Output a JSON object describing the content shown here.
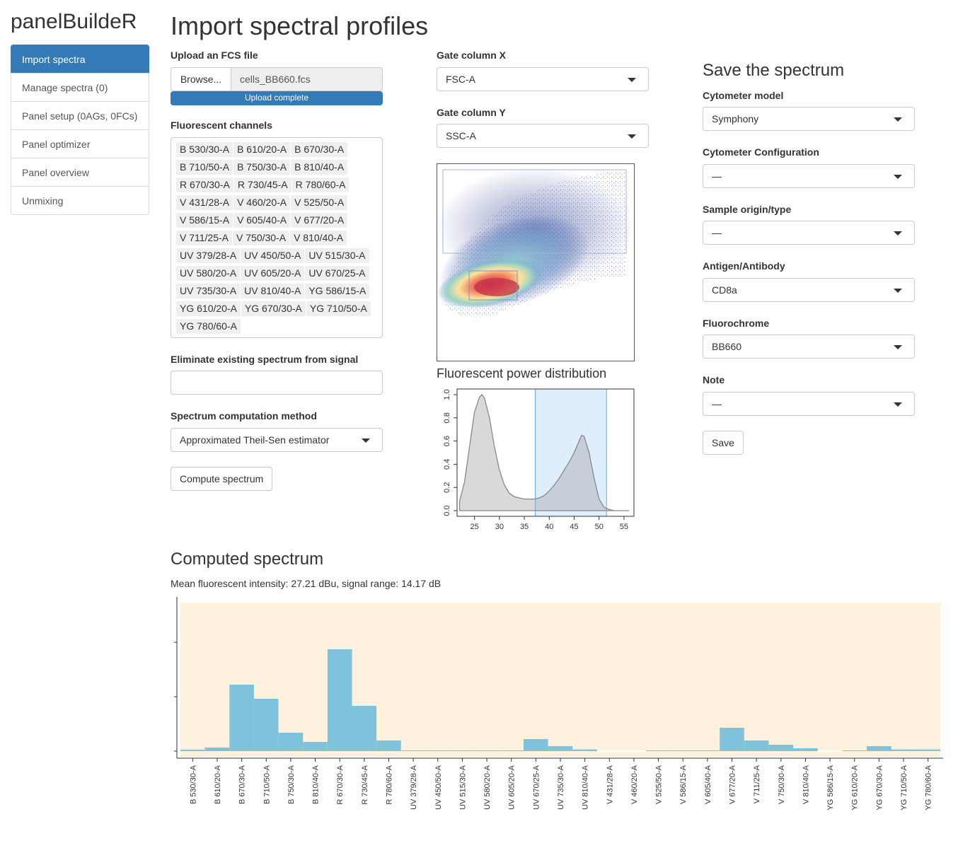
{
  "app": {
    "title": "panelBuildeR"
  },
  "nav": {
    "items": [
      {
        "label": "Import spectra",
        "active": true
      },
      {
        "label": "Manage spectra (0)",
        "active": false
      },
      {
        "label": "Panel setup (0AGs, 0FCs)",
        "active": false
      },
      {
        "label": "Panel optimizer",
        "active": false
      },
      {
        "label": "Panel overview",
        "active": false
      },
      {
        "label": "Unmixing",
        "active": false
      }
    ]
  },
  "page": {
    "title": "Import spectral profiles"
  },
  "upload": {
    "label": "Upload an FCS file",
    "browse_label": "Browse...",
    "filename": "cells_BB660.fcs",
    "progress_text": "Upload complete",
    "progress_fraction": 1.0
  },
  "channels": {
    "label": "Fluorescent channels",
    "items": [
      "B 530/30-A",
      "B 610/20-A",
      "B 670/30-A",
      "B 710/50-A",
      "B 750/30-A",
      "B 810/40-A",
      "R 670/30-A",
      "R 730/45-A",
      "R 780/60-A",
      "V 431/28-A",
      "V 460/20-A",
      "V 525/50-A",
      "V 586/15-A",
      "V 605/40-A",
      "V 677/20-A",
      "V 711/25-A",
      "V 750/30-A",
      "V 810/40-A",
      "UV 379/28-A",
      "UV 450/50-A",
      "UV 515/30-A",
      "UV 580/20-A",
      "UV 605/20-A",
      "UV 670/25-A",
      "UV 735/30-A",
      "UV 810/40-A",
      "YG 586/15-A",
      "YG 610/20-A",
      "YG 670/30-A",
      "YG 710/50-A",
      "YG 780/60-A"
    ]
  },
  "eliminate": {
    "label": "Eliminate existing spectrum from signal",
    "value": ""
  },
  "method": {
    "label": "Spectrum computation method",
    "value": "Approximated Theil-Sen estimator"
  },
  "compute_button": "Compute spectrum",
  "gate": {
    "x_label": "Gate column X",
    "x_value": "FSC-A",
    "y_label": "Gate column Y",
    "y_value": "SSC-A"
  },
  "power": {
    "title": "Fluorescent power distribution",
    "chart_data": {
      "type": "area",
      "x_ticks": [
        25,
        30,
        35,
        40,
        45,
        50,
        55
      ],
      "y_ticks": [
        "0.0",
        "0.2",
        "0.4",
        "0.6",
        "0.8",
        "1.0"
      ],
      "xlim": [
        21.5,
        57
      ],
      "ylim": [
        0,
        1
      ],
      "x": [
        22,
        23,
        24,
        25,
        26,
        26.5,
        27,
        28,
        29,
        30,
        31,
        32,
        33,
        34,
        35,
        36,
        37,
        38,
        39,
        40,
        41,
        42,
        43,
        44,
        45,
        46,
        46.5,
        47,
        48,
        49,
        50,
        51,
        52,
        53,
        54,
        55,
        56
      ],
      "y": [
        0.08,
        0.25,
        0.55,
        0.85,
        0.98,
        1.0,
        0.97,
        0.8,
        0.55,
        0.35,
        0.22,
        0.15,
        0.12,
        0.11,
        0.1,
        0.1,
        0.1,
        0.11,
        0.13,
        0.17,
        0.22,
        0.28,
        0.35,
        0.42,
        0.5,
        0.6,
        0.65,
        0.64,
        0.5,
        0.28,
        0.1,
        0.03,
        0.01,
        0,
        0,
        0,
        0
      ],
      "selection": [
        37.2,
        51.5
      ]
    }
  },
  "save": {
    "title": "Save the spectrum",
    "cytometer_model_label": "Cytometer model",
    "cytometer_model": "Symphony",
    "config_label": "Cytometer Configuration",
    "config": "—",
    "sample_label": "Sample origin/type",
    "sample": "—",
    "antigen_label": "Antigen/Antibody",
    "antigen": "CD8a",
    "fluorochrome_label": "Fluorochrome",
    "fluorochrome": "BB660",
    "note_label": "Note",
    "note": "—",
    "button": "Save"
  },
  "computed": {
    "title": "Computed spectrum",
    "summary": "Mean fluorescent intensity: 27.21 dBu, signal range: 14.17 dB",
    "chart_data": {
      "type": "bar",
      "categories": [
        "B 530/30-A",
        "B 610/20-A",
        "B 670/30-A",
        "B 710/50-A",
        "B 750/30-A",
        "B 810/40-A",
        "R 670/30-A",
        "R 730/45-A",
        "R 780/60-A",
        "UV 379/28-A",
        "UV 450/50-A",
        "UV 515/30-A",
        "UV 580/20-A",
        "UV 605/20-A",
        "UV 670/25-A",
        "UV 735/30-A",
        "UV 810/40-A",
        "V 431/28-A",
        "V 460/20-A",
        "V 525/50-A",
        "V 586/15-A",
        "V 605/40-A",
        "V 677/20-A",
        "V 711/25-A",
        "V 750/30-A",
        "V 810/40-A",
        "YG 586/15-A",
        "YG 610/20-A",
        "YG 670/30-A",
        "YG 710/50-A",
        "YG 780/60-A"
      ],
      "values": [
        0.01,
        0.025,
        0.47,
        0.37,
        0.13,
        0.065,
        0.72,
        0.32,
        0.075,
        0.005,
        0.005,
        0.005,
        0.005,
        0.005,
        0.085,
        0.035,
        0.012,
        0,
        0,
        0.005,
        0.005,
        0.005,
        0.165,
        0.075,
        0.045,
        0.02,
        0,
        0.005,
        0.035,
        0.012,
        0.012
      ],
      "ylim": [
        0,
        1
      ],
      "y_tick_count": 3,
      "bar_color": "#7ec3db",
      "background_color": "#fef1dd"
    }
  }
}
